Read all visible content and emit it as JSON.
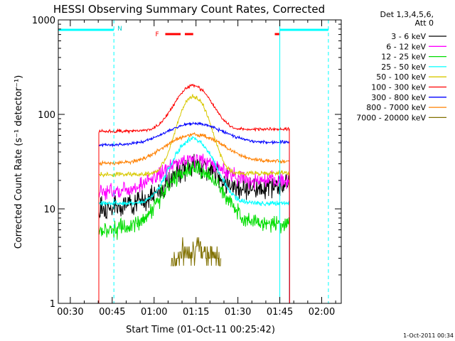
{
  "chart_data": {
    "type": "line",
    "title": "HESSI Observing Summary Count Rates, Corrected",
    "xlabel": "Start Time (01-Oct-11 00:25:42)",
    "ylabel": "Corrected Count Rate (s⁻¹ detector⁻¹)",
    "yscale": "log",
    "xlim_minutes": [
      25.7,
      127.0
    ],
    "ylim": [
      1,
      1000
    ],
    "x_ticks": [
      {
        "label": "00:30",
        "minutes": 30
      },
      {
        "label": "00:45",
        "minutes": 45
      },
      {
        "label": "01:00",
        "minutes": 60
      },
      {
        "label": "01:15",
        "minutes": 75
      },
      {
        "label": "01:30",
        "minutes": 90
      },
      {
        "label": "01:45",
        "minutes": 105
      },
      {
        "label": "02:00",
        "minutes": 120
      }
    ],
    "y_ticks": [
      {
        "label": "1",
        "value": 1
      },
      {
        "label": "10",
        "value": 10
      },
      {
        "label": "100",
        "value": 100
      },
      {
        "label": "1000",
        "value": 1000
      }
    ],
    "legend_header": [
      "Det 1,3,4,5,6,",
      "Att 0"
    ],
    "legend_position": "right",
    "timestamp": "1-Oct-2011 00:34",
    "annotations": {
      "night_label": "N",
      "flare_label": "F",
      "night_intervals_minutes": [
        [
          25.7,
          45.6
        ],
        [
          105.0,
          122.4
        ]
      ],
      "night_dashed_lines_minutes": [
        45.6,
        122.4
      ],
      "saa_line_minutes": 105.0,
      "flare_segments_minutes": [
        [
          64.0,
          69.5
        ],
        [
          71.0,
          74.0
        ],
        [
          103.2,
          104.8
        ]
      ]
    },
    "data_start_minutes": 40.2,
    "data_end_minutes": 108.5,
    "series": [
      {
        "name": "3 - 6 keV",
        "color": "#000000",
        "baseline": 10,
        "peak": 25,
        "peak_time": 74.5,
        "width": 7,
        "end_level": 18,
        "noise": 0.3
      },
      {
        "name": "6 - 12 keV",
        "color": "#ff00ff",
        "baseline": 15,
        "peak": 31,
        "peak_time": 73.8,
        "width": 9,
        "end_level": 20,
        "noise": 0.22
      },
      {
        "name": "12 - 25 keV",
        "color": "#00dd00",
        "baseline": 6,
        "peak": 26,
        "peak_time": 74.0,
        "width": 8,
        "end_level": 7,
        "noise": 0.22
      },
      {
        "name": "25 - 50 keV",
        "color": "#00ffff",
        "baseline": 11.5,
        "peak": 55,
        "peak_time": 74.0,
        "width": 6,
        "end_level": 11.5,
        "noise": 0.07
      },
      {
        "name": "50 - 100 keV",
        "color": "#d8c800",
        "baseline": 23,
        "peak": 155,
        "peak_time": 74.2,
        "width": 4.5,
        "end_level": 24,
        "noise": 0.06
      },
      {
        "name": "100 - 300 keV",
        "color": "#ff0000",
        "baseline": 66,
        "peak": 200,
        "peak_time": 74.0,
        "width": 5.5,
        "end_level": 70,
        "noise": 0.04
      },
      {
        "name": "300 - 800 keV",
        "color": "#0000ff",
        "baseline": 47,
        "peak": 78,
        "peak_time": 74.5,
        "width": 9,
        "end_level": 51,
        "noise": 0.04
      },
      {
        "name": "800 - 7000 keV",
        "color": "#ff8000",
        "baseline": 30,
        "peak": 60,
        "peak_time": 74.5,
        "width": 9,
        "end_level": 32,
        "noise": 0.05
      },
      {
        "name": "7000 - 20000 keV",
        "color": "#807000",
        "baseline": 1.5,
        "peak": 3.5,
        "peak_time": 74.0,
        "width": 8,
        "end_level": 2,
        "noise": 0.35,
        "start_minutes": 66.0,
        "end_minutes": 84.0
      }
    ]
  }
}
